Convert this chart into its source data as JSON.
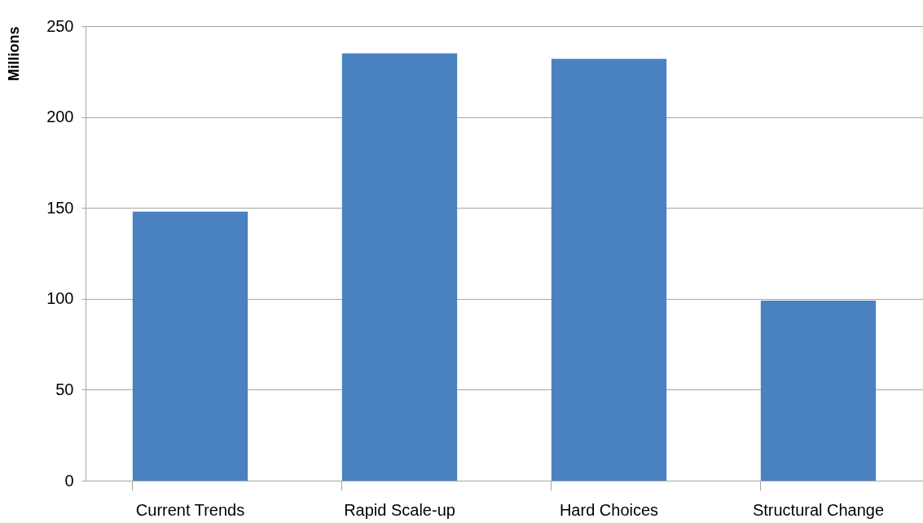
{
  "chart_data": {
    "type": "bar",
    "ylabel": "Millions",
    "categories": [
      "Current Trends",
      "Rapid Scale-up",
      "Hard Choices",
      "Structural Change"
    ],
    "values": [
      148,
      235,
      232,
      99
    ],
    "color": "#4a81c0",
    "ylim": [
      0,
      250
    ],
    "yticks": [
      0,
      50,
      100,
      150,
      200,
      250
    ],
    "grid": "y"
  }
}
